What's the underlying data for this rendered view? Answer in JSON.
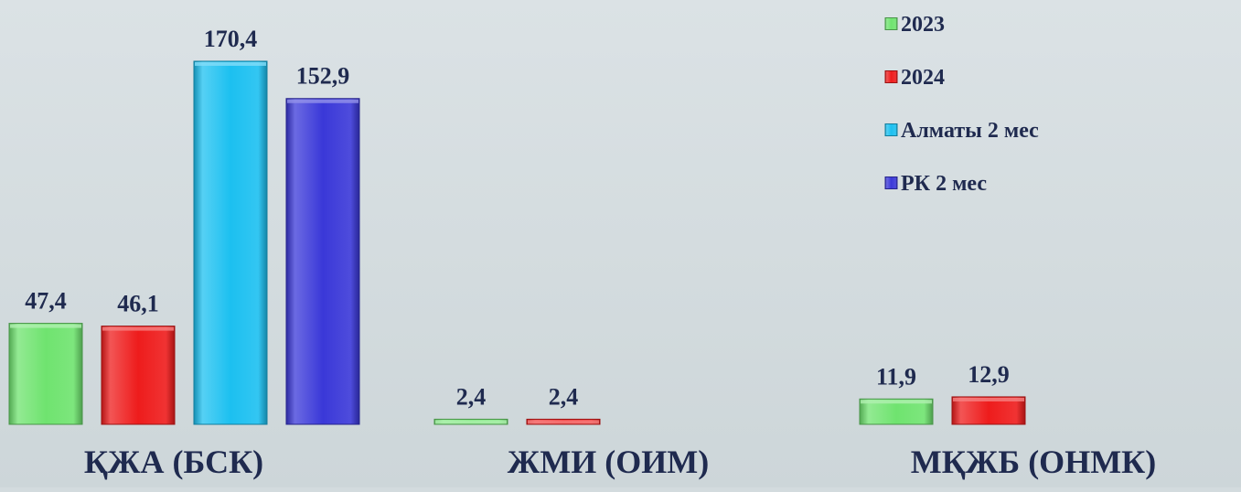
{
  "chart_data": {
    "type": "bar",
    "categories": [
      "ҚЖА (БСК)",
      "ЖМИ (ОИМ)",
      "МҚЖБ (ОНМК)"
    ],
    "series": [
      {
        "name": "2023",
        "color": "#6fe36f",
        "values": [
          47.4,
          2.4,
          11.9
        ],
        "labels": [
          "47,4",
          "2,4",
          "11,9"
        ]
      },
      {
        "name": "2024",
        "color": "#ee1c1c",
        "values": [
          46.1,
          2.4,
          12.9
        ],
        "labels": [
          "46,1",
          "2,4",
          "12,9"
        ]
      },
      {
        "name": "Алматы 2 мес",
        "color": "#1cc0f0",
        "values": [
          170.4,
          null,
          null
        ],
        "labels": [
          "170,4",
          "",
          ""
        ]
      },
      {
        "name": "РК 2 мес",
        "color": "#3a38d8",
        "values": [
          152.9,
          null,
          null
        ],
        "labels": [
          "152,9",
          "",
          ""
        ]
      }
    ],
    "legend_position": "top-right",
    "grid": false
  }
}
